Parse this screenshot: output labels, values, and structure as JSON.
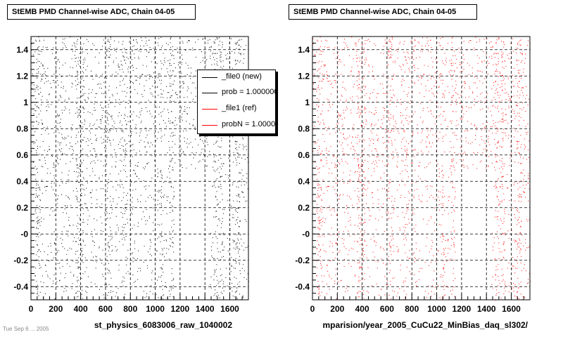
{
  "colors": {
    "new": "#000000",
    "ref": "#ff0000",
    "frame": "#000000",
    "grid": "#000000"
  },
  "left": {
    "title": "StEMB PMD Channel-wise ADC, Chain 04-05",
    "xlabel": "st_physics_6083006_raw_1040002",
    "legend": [
      {
        "label": "_file0 (new)",
        "color": "#000000"
      },
      {
        "label": "prob = 1.000000",
        "color": "#000000"
      },
      {
        "label": "_file1 (ref)",
        "color": "#ff0000"
      },
      {
        "label": "probN = 1.000000",
        "color": "#ff0000"
      }
    ]
  },
  "right": {
    "title": "StEMB PMD Channel-wise ADC, Chain 04-05",
    "xlabel": "mparision/year_2005_CuCu22_MinBias_daq_sl302/"
  },
  "footnote": "Tue Sep  6  ...  2005",
  "chart_data": [
    {
      "type": "scatter",
      "title": "StEMB PMD Channel-wise ADC, Chain 04-05",
      "xlabel": "st_physics_6083006_raw_1040002",
      "ylabel": "",
      "xlim": [
        0,
        1750
      ],
      "ylim": [
        -0.5,
        1.5
      ],
      "xticks": [
        "0",
        "200",
        "400",
        "600",
        "800",
        "1000",
        "1200",
        "1400",
        "1600"
      ],
      "yticks": [
        "-0.4",
        "-0.2",
        "-0",
        "0.2",
        "0.4",
        "0.6",
        "0.8",
        "1",
        "1.2",
        "1.4"
      ],
      "grid": true,
      "color": "#000000",
      "legend_position": "top-right",
      "series": [
        {
          "name": "_file0 (new)",
          "color": "#000000"
        }
      ],
      "dense_bands_x": [
        [
          30,
          70
        ],
        [
          360,
          420
        ],
        [
          600,
          640
        ],
        [
          730,
          760
        ],
        [
          1040,
          1060
        ],
        [
          1110,
          1150
        ],
        [
          1470,
          1500
        ],
        [
          1520,
          1550
        ],
        [
          1640,
          1680
        ]
      ],
      "empty_regions": [
        {
          "x": [
            0,
            30
          ],
          "y": [
            -0.5,
            0.5
          ]
        },
        {
          "x": [
            1150,
            1440
          ],
          "y": [
            -0.5,
            0.5
          ]
        }
      ]
    },
    {
      "type": "scatter",
      "title": "StEMB PMD Channel-wise ADC, Chain 04-05",
      "xlabel": "mparision/year_2005_CuCu22_MinBias_daq_sl302/",
      "ylabel": "",
      "xlim": [
        0,
        1750
      ],
      "ylim": [
        -0.5,
        1.5
      ],
      "xticks": [
        "0",
        "200",
        "400",
        "600",
        "800",
        "1000",
        "1200",
        "1400",
        "1600"
      ],
      "yticks": [
        "-0.4",
        "-0.2",
        "-0",
        "0.2",
        "0.4",
        "0.6",
        "0.8",
        "1",
        "1.2",
        "1.4"
      ],
      "grid": true,
      "color": "#ff0000",
      "series": [
        {
          "name": "_file1 (ref)",
          "color": "#ff0000"
        }
      ],
      "dense_bands_x": [
        [
          30,
          70
        ],
        [
          360,
          420
        ],
        [
          600,
          640
        ],
        [
          730,
          760
        ],
        [
          1040,
          1060
        ],
        [
          1110,
          1150
        ],
        [
          1470,
          1500
        ],
        [
          1520,
          1550
        ],
        [
          1640,
          1680
        ]
      ],
      "empty_regions": [
        {
          "x": [
            0,
            30
          ],
          "y": [
            -0.5,
            0.5
          ]
        },
        {
          "x": [
            1150,
            1440
          ],
          "y": [
            -0.5,
            0.5
          ]
        }
      ]
    }
  ]
}
